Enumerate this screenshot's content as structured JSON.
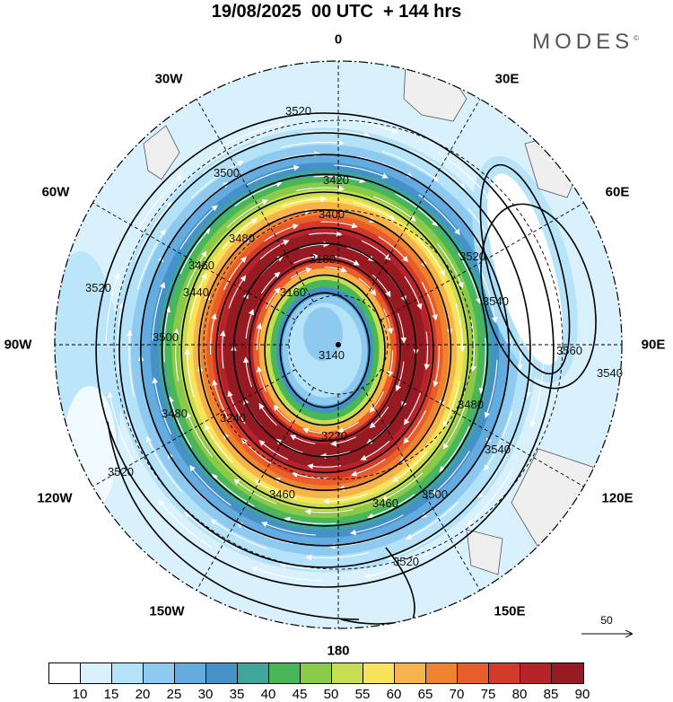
{
  "header": {
    "title": "19/08/2025  00 UTC  + 144 hrs",
    "brand": "MODES",
    "brand_mark": "©"
  },
  "map": {
    "longitude_labels": [
      {
        "id": "0",
        "text": "0"
      },
      {
        "id": "30e",
        "text": "30E"
      },
      {
        "id": "60e",
        "text": "60E"
      },
      {
        "id": "90e",
        "text": "90E"
      },
      {
        "id": "120e",
        "text": "120E"
      },
      {
        "id": "150e",
        "text": "150E"
      },
      {
        "id": "180",
        "text": "180"
      },
      {
        "id": "150w",
        "text": "150W"
      },
      {
        "id": "120w",
        "text": "120W"
      },
      {
        "id": "90w",
        "text": "90W"
      },
      {
        "id": "60w",
        "text": "60W"
      },
      {
        "id": "30w",
        "text": "30W"
      }
    ],
    "contour_labels": [
      "3520",
      "3500",
      "3480",
      "3460",
      "3440",
      "3420",
      "3400",
      "3180",
      "3160",
      "3140",
      "3240",
      "3220",
      "3520",
      "3540",
      "3560",
      "3540",
      "3540",
      "3500",
      "3460",
      "3460",
      "3480",
      "3500",
      "3520",
      "3520",
      "3480",
      "3520"
    ],
    "wind_vector_reference": "50",
    "colors": {
      "ocean_land": "#efefef",
      "coast": "#555555"
    }
  },
  "colorbar": {
    "labels": [
      "10",
      "15",
      "20",
      "25",
      "30",
      "35",
      "40",
      "45",
      "50",
      "55",
      "60",
      "65",
      "70",
      "75",
      "80",
      "85",
      "90"
    ],
    "colors": [
      "#ffffff",
      "#d8f1fc",
      "#b4e2f8",
      "#8ecaf0",
      "#64abe0",
      "#4592c8",
      "#3fa69a",
      "#49b657",
      "#8bc94a",
      "#c8de52",
      "#f7e45a",
      "#f6b44b",
      "#f0832f",
      "#e95d2a",
      "#d33a29",
      "#b8222a",
      "#951a22"
    ]
  }
}
